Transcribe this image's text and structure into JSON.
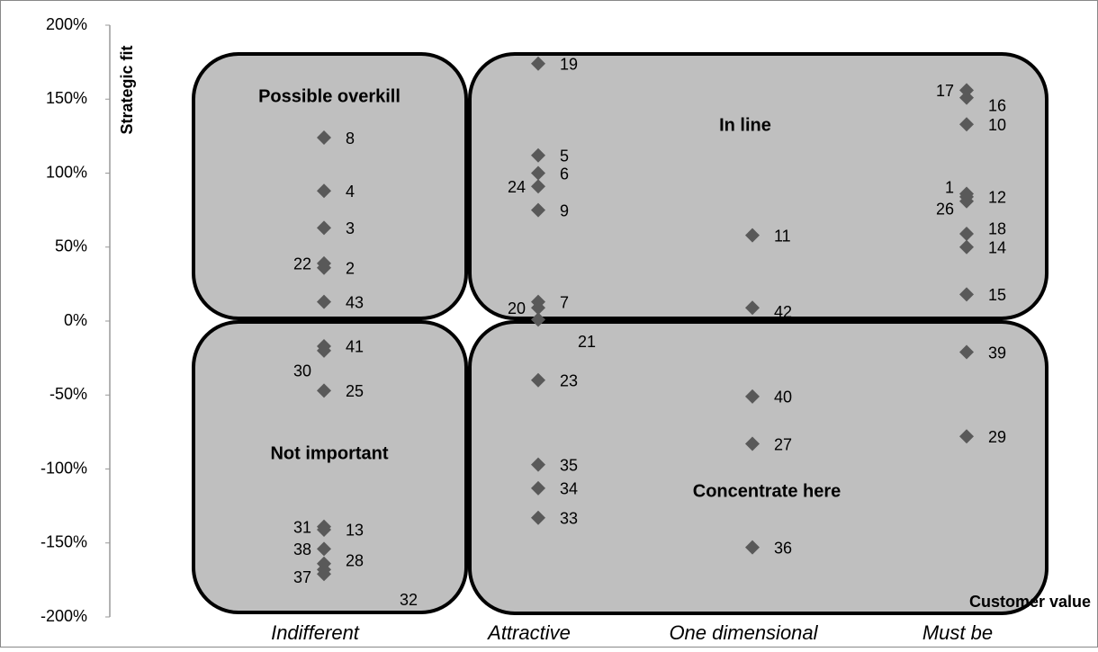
{
  "chart_data": {
    "type": "scatter",
    "y_label": "Strategic fit",
    "x_label": "Customer value",
    "categories": [
      "Indifferent",
      "Attractive",
      "One dimensional",
      "Must be"
    ],
    "ylim": [
      -200,
      200
    ],
    "yticks": [
      {
        "value": -200,
        "label": "-200%"
      },
      {
        "value": -150,
        "label": "-150%"
      },
      {
        "value": -100,
        "label": "-100%"
      },
      {
        "value": -50,
        "label": "-50%"
      },
      {
        "value": 0,
        "label": "0%"
      },
      {
        "value": 50,
        "label": "50%"
      },
      {
        "value": 100,
        "label": "100%"
      },
      {
        "value": 150,
        "label": "150%"
      },
      {
        "value": 200,
        "label": "200%"
      }
    ],
    "color": "#595959",
    "annotations": [
      "Possible overkill",
      "In line",
      "Not important",
      "Concentrate here"
    ],
    "points": [
      {
        "label": 8,
        "x": "Indifferent",
        "y": 124
      },
      {
        "label": 4,
        "x": "Indifferent",
        "y": 88
      },
      {
        "label": 3,
        "x": "Indifferent",
        "y": 63
      },
      {
        "label": 22,
        "x": "Indifferent",
        "y": 39
      },
      {
        "label": 2,
        "x": "Indifferent",
        "y": 36
      },
      {
        "label": 43,
        "x": "Indifferent",
        "y": 13
      },
      {
        "label": 41,
        "x": "Indifferent",
        "y": -17
      },
      {
        "label": 30,
        "x": "Indifferent",
        "y": -20
      },
      {
        "label": 25,
        "x": "Indifferent",
        "y": -47
      },
      {
        "label": 31,
        "x": "Indifferent",
        "y": -139
      },
      {
        "label": 13,
        "x": "Indifferent",
        "y": -141
      },
      {
        "label": 38,
        "x": "Indifferent",
        "y": -154
      },
      {
        "label": 28,
        "x": "Indifferent",
        "y": -164
      },
      {
        "label": 37,
        "x": "Indifferent",
        "y": -168
      },
      {
        "label": 32,
        "x": "Indifferent",
        "y": -171
      },
      {
        "label": 19,
        "x": "Attractive",
        "y": 174
      },
      {
        "label": 5,
        "x": "Attractive",
        "y": 112
      },
      {
        "label": 6,
        "x": "Attractive",
        "y": 100
      },
      {
        "label": 24,
        "x": "Attractive",
        "y": 91
      },
      {
        "label": 9,
        "x": "Attractive",
        "y": 75
      },
      {
        "label": 7,
        "x": "Attractive",
        "y": 13
      },
      {
        "label": 20,
        "x": "Attractive",
        "y": 9
      },
      {
        "label": 21,
        "x": "Attractive",
        "y": 1
      },
      {
        "label": 23,
        "x": "Attractive",
        "y": -40
      },
      {
        "label": 35,
        "x": "Attractive",
        "y": -97
      },
      {
        "label": 34,
        "x": "Attractive",
        "y": -113
      },
      {
        "label": 33,
        "x": "Attractive",
        "y": -133
      },
      {
        "label": 11,
        "x": "One dimensional",
        "y": 58
      },
      {
        "label": 42,
        "x": "One dimensional",
        "y": 9
      },
      {
        "label": 40,
        "x": "One dimensional",
        "y": -51
      },
      {
        "label": 27,
        "x": "One dimensional",
        "y": -83
      },
      {
        "label": 36,
        "x": "One dimensional",
        "y": -153
      },
      {
        "label": 17,
        "x": "Must be",
        "y": 156
      },
      {
        "label": 16,
        "x": "Must be",
        "y": 151
      },
      {
        "label": 10,
        "x": "Must be",
        "y": 133
      },
      {
        "label": 1,
        "x": "Must be",
        "y": 86
      },
      {
        "label": 12,
        "x": "Must be",
        "y": 84
      },
      {
        "label": 26,
        "x": "Must be",
        "y": 81
      },
      {
        "label": 18,
        "x": "Must be",
        "y": 59
      },
      {
        "label": 14,
        "x": "Must be",
        "y": 50
      },
      {
        "label": 15,
        "x": "Must be",
        "y": 18
      },
      {
        "label": 39,
        "x": "Must be",
        "y": -21
      },
      {
        "label": 29,
        "x": "Must be",
        "y": -78
      }
    ]
  }
}
